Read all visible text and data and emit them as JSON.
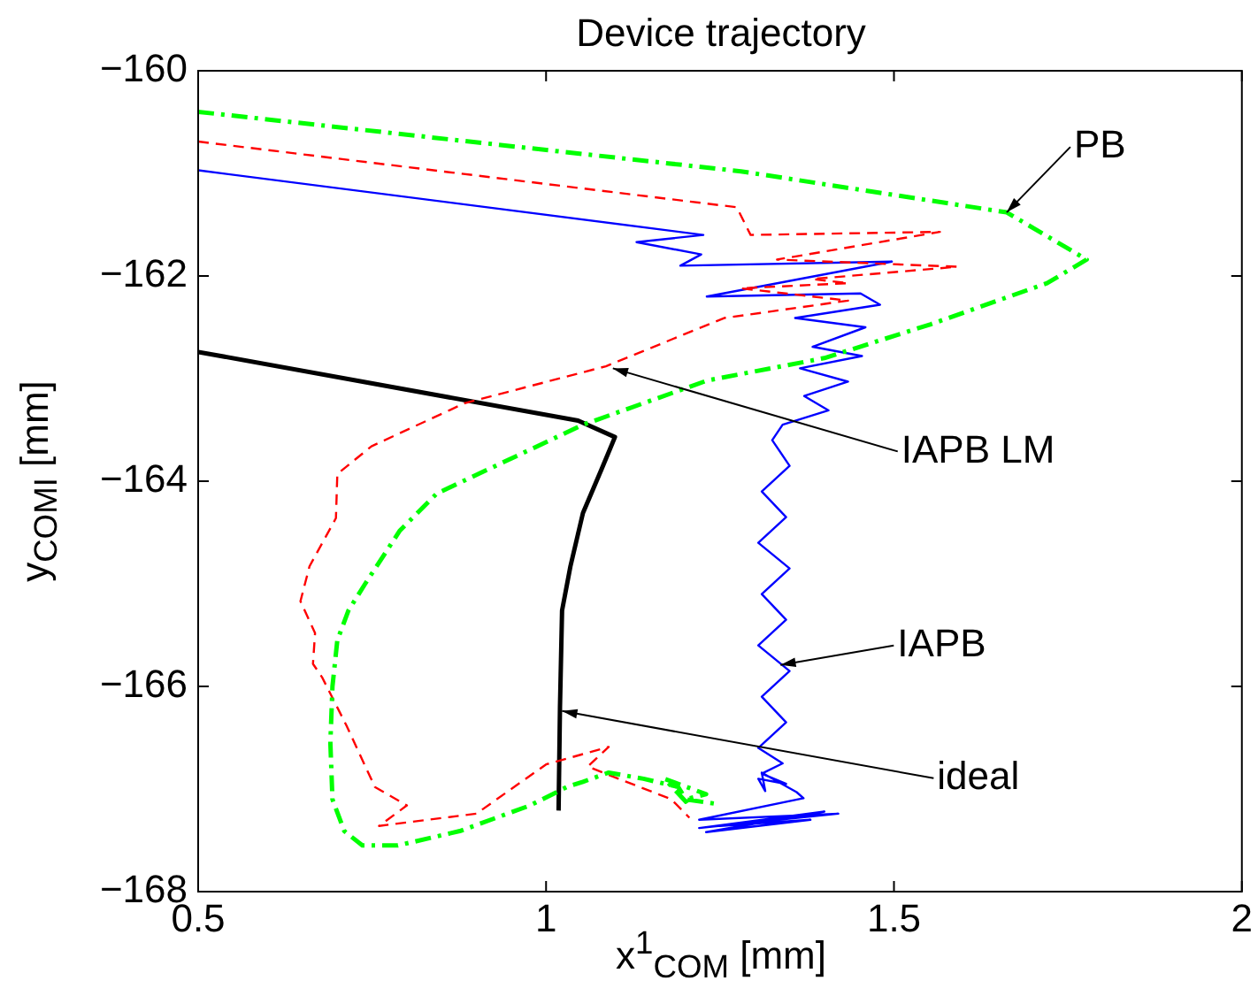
{
  "chart_data": {
    "type": "line",
    "title": "Device trajectory",
    "xlabel": "x$^{1}$$_{COM}$ [mm]",
    "ylabel": "y$_{COM}$$_{I}$ [mm]",
    "xlim": [
      0.5,
      2
    ],
    "xticks": [
      0.5,
      1,
      1.5,
      2
    ],
    "ylim": [
      -168,
      -160
    ],
    "yticks": [
      -168,
      -166,
      -164,
      -162,
      -160
    ],
    "grid": false,
    "legend": false,
    "marker": "none",
    "series": [
      {
        "color": "#00ff00",
        "line_style": "dashdot",
        "x": [
          0.5,
          1.28,
          1.662,
          1.777,
          1.72,
          1.553,
          1.4,
          1.231,
          1.053,
          0.843,
          0.79,
          0.74,
          0.716,
          0.7,
          0.693,
          0.69,
          0.693,
          0.71,
          0.736,
          0.787,
          0.876,
          0.977,
          1.03,
          1.053,
          1.09,
          1.14,
          1.19,
          1.206,
          1.17,
          1.23,
          1.2,
          1.25
        ],
        "values": [
          -160.4,
          -160.98,
          -161.38,
          -161.84,
          -162.07,
          -162.47,
          -162.8,
          -163.02,
          -163.45,
          -164.12,
          -164.48,
          -165.0,
          -165.26,
          -165.55,
          -166.0,
          -166.55,
          -167.1,
          -167.41,
          -167.55,
          -167.55,
          -167.41,
          -167.16,
          -166.98,
          -166.93,
          -166.84,
          -166.9,
          -166.98,
          -167.16,
          -166.9,
          -167.05,
          -167.1,
          -167.15
        ]
      },
      {
        "color": "#ff0000",
        "line_style": "dashed",
        "x": [
          0.5,
          1.274,
          1.294,
          1.566,
          1.332,
          1.591,
          1.383,
          1.434,
          1.28,
          1.434,
          1.256,
          1.086,
          0.883,
          0.749,
          0.7,
          0.698,
          0.66,
          0.647,
          0.668,
          0.665,
          0.678,
          0.713,
          0.754,
          0.8,
          0.76,
          0.9,
          1.0,
          1.09,
          1.06,
          1.104,
          1.18,
          1.206
        ],
        "values": [
          -160.69,
          -161.33,
          -161.6,
          -161.57,
          -161.84,
          -161.91,
          -162.03,
          -162.07,
          -162.12,
          -162.24,
          -162.41,
          -162.88,
          -163.24,
          -163.66,
          -163.93,
          -164.36,
          -164.83,
          -165.17,
          -165.48,
          -165.78,
          -165.91,
          -166.38,
          -166.98,
          -167.16,
          -167.36,
          -167.24,
          -166.76,
          -166.59,
          -166.78,
          -166.9,
          -167.1,
          -167.28
        ]
      },
      {
        "color": "#0000ff",
        "line_style": "solid",
        "x": [
          0.5,
          1.226,
          1.13,
          1.223,
          1.193,
          1.497,
          1.231,
          1.452,
          1.48,
          1.358,
          1.459,
          1.383,
          1.454,
          1.365,
          1.434,
          1.371,
          1.406,
          1.34,
          1.325,
          1.35,
          1.31,
          1.345,
          1.305,
          1.35,
          1.31,
          1.345,
          1.305,
          1.35,
          1.31,
          1.345,
          1.305,
          1.34,
          1.31,
          1.345,
          1.305,
          1.315,
          1.31,
          1.36,
          1.37,
          1.22,
          1.42,
          1.22,
          1.4,
          1.23,
          1.38,
          1.25
        ],
        "values": [
          -160.97,
          -161.6,
          -161.67,
          -161.79,
          -161.9,
          -161.86,
          -162.2,
          -162.17,
          -162.28,
          -162.41,
          -162.5,
          -162.69,
          -162.78,
          -162.9,
          -163.03,
          -163.17,
          -163.31,
          -163.45,
          -163.6,
          -163.85,
          -164.1,
          -164.35,
          -164.6,
          -164.85,
          -165.1,
          -165.35,
          -165.6,
          -165.85,
          -166.1,
          -166.35,
          -166.6,
          -166.75,
          -166.85,
          -166.95,
          -166.9,
          -167.02,
          -166.84,
          -167.03,
          -167.09,
          -167.3,
          -167.24,
          -167.38,
          -167.22,
          -167.42,
          -167.3,
          -167.36
        ]
      },
      {
        "color": "#000000",
        "line_style": "solid",
        "x": [
          0.5,
          1.046,
          1.099,
          1.08,
          1.053,
          1.035,
          1.023,
          1.02,
          1.018
        ],
        "values": [
          -162.74,
          -163.41,
          -163.57,
          -163.88,
          -164.31,
          -164.83,
          -165.26,
          -166.2,
          -167.21
        ]
      }
    ],
    "annotations": [
      {
        "text": "PB",
        "x": 1.662,
        "y": -161.38
      },
      {
        "text": "IAPB LM",
        "x": 1.096,
        "y": -162.9
      },
      {
        "text": "IAPB",
        "x": 1.337,
        "y": -165.79
      },
      {
        "text": "ideal",
        "x": 1.023,
        "y": -166.24
      }
    ]
  }
}
